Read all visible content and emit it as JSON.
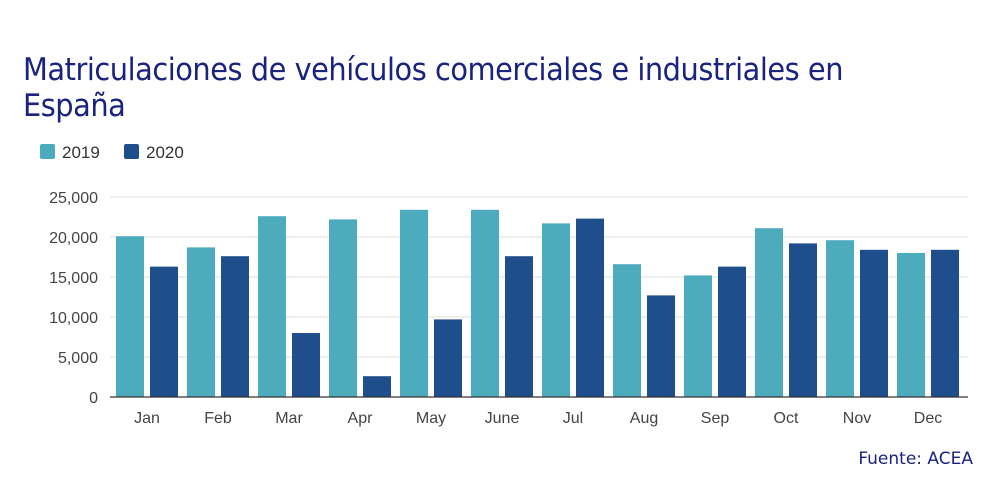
{
  "title": "Matriculaciones de vehículos comerciales e industriales en España",
  "source": "Fuente: ACEA",
  "chart_data": {
    "type": "bar",
    "categories": [
      "Jan",
      "Feb",
      "Mar",
      "Apr",
      "May",
      "June",
      "Jul",
      "Aug",
      "Sep",
      "Oct",
      "Nov",
      "Dec"
    ],
    "series": [
      {
        "name": "2019",
        "color": "#4dabbe",
        "values": [
          20100,
          18700,
          22600,
          22200,
          23400,
          23400,
          21700,
          16600,
          15200,
          21100,
          19600,
          18000
        ]
      },
      {
        "name": "2020",
        "color": "#1f4e8c",
        "values": [
          16300,
          17600,
          8000,
          2600,
          9700,
          17600,
          22300,
          12700,
          16300,
          19200,
          18400,
          18400
        ]
      }
    ],
    "ylim": [
      0,
      25000
    ],
    "yticks": [
      0,
      5000,
      10000,
      15000,
      20000,
      25000
    ],
    "ytick_labels": [
      "0",
      "5,000",
      "10,000",
      "15,000",
      "20,000",
      "25,000"
    ],
    "grid": true,
    "legend_position": "top-left"
  }
}
